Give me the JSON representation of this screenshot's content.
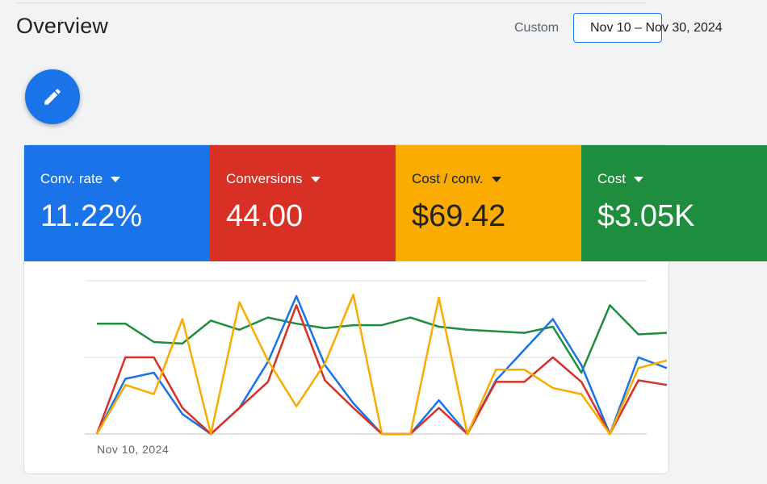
{
  "header": {
    "title": "Overview",
    "range_label": "Custom",
    "date_range": "Nov 10 – Nov 30, 2024"
  },
  "fab": {
    "icon": "pencil-icon"
  },
  "metrics": [
    {
      "label": "Conv. rate",
      "value": "11.22%",
      "color": "#1a73e8"
    },
    {
      "label": "Conversions",
      "value": "44.00",
      "color": "#d93025"
    },
    {
      "label": "Cost / conv.",
      "value": "$69.42",
      "color": "#f9ab00"
    },
    {
      "label": "Cost",
      "value": "$3.05K",
      "color": "#1e8e3e"
    }
  ],
  "chart_data": {
    "type": "line",
    "x_start_label": "Nov 10, 2024",
    "grid": true,
    "y_scale": "relative (normalized 0–1, no printed ticks)",
    "series": [
      {
        "name": "Conv. rate",
        "color": "#1a73e8",
        "values": [
          0,
          0.36,
          0.4,
          0.13,
          0,
          0.17,
          0.47,
          0.9,
          0.45,
          0.2,
          0,
          0,
          0.22,
          0,
          0.35,
          0.55,
          0.75,
          0.45,
          0,
          0.5,
          0.43
        ]
      },
      {
        "name": "Conversions",
        "color": "#d93025",
        "values": [
          0,
          0.5,
          0.5,
          0.17,
          0,
          0.17,
          0.34,
          0.84,
          0.35,
          0.17,
          0,
          0,
          0.17,
          0,
          0.34,
          0.34,
          0.5,
          0.34,
          0,
          0.35,
          0.32
        ]
      },
      {
        "name": "Cost / conv.",
        "color": "#f9ab00",
        "values": [
          0,
          0.32,
          0.26,
          0.75,
          0,
          0.86,
          0.48,
          0.18,
          0.46,
          0.91,
          0,
          0,
          0.89,
          0,
          0.42,
          0.42,
          0.3,
          0.26,
          0,
          0.43,
          0.48
        ]
      },
      {
        "name": "Cost",
        "color": "#1e8e3e",
        "values": [
          0.72,
          0.72,
          0.6,
          0.59,
          0.74,
          0.68,
          0.76,
          0.72,
          0.69,
          0.71,
          0.71,
          0.76,
          0.7,
          0.68,
          0.67,
          0.66,
          0.7,
          0.4,
          0.84,
          0.65,
          0.66
        ]
      }
    ]
  }
}
